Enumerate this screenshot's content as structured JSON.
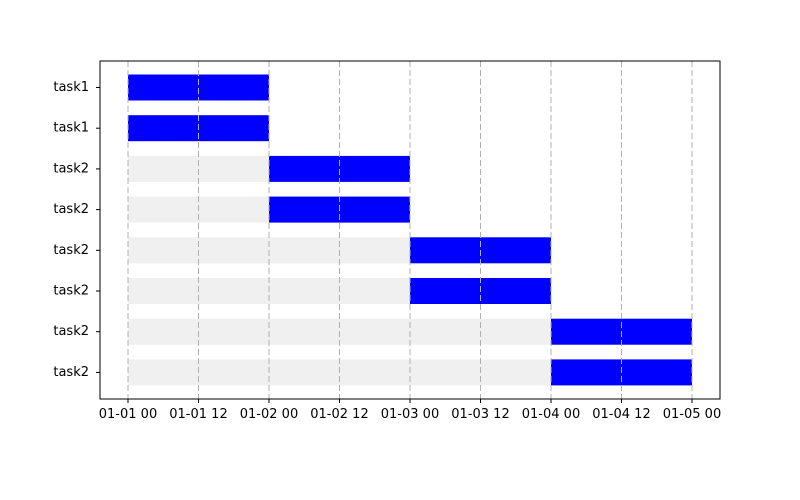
{
  "chart_data": {
    "type": "gantt",
    "title": "",
    "xlabel": "",
    "ylabel": "",
    "x_ticks": [
      "01-01 00",
      "01-01 12",
      "01-02 00",
      "01-02 12",
      "01-03 00",
      "01-03 12",
      "01-04 00",
      "01-04 12",
      "01-05 00"
    ],
    "x_tick_values": [
      "2000-01-01 00:00",
      "2000-01-01 12:00",
      "2000-01-02 00:00",
      "2000-01-02 12:00",
      "2000-01-03 00:00",
      "2000-01-03 12:00",
      "2000-01-04 00:00",
      "2000-01-04 12:00",
      "2000-01-05 00:00"
    ],
    "xlim": [
      "2000-01-01 00:00",
      "2000-01-05 00:00"
    ],
    "grid": "x-dashed",
    "tasks": [
      {
        "label": "task1",
        "start": "2000-01-01 00:00",
        "end": "2000-01-02 00:00"
      },
      {
        "label": "task1",
        "start": "2000-01-01 00:00",
        "end": "2000-01-02 00:00"
      },
      {
        "label": "task2",
        "start": "2000-01-02 00:00",
        "end": "2000-01-03 00:00"
      },
      {
        "label": "task2",
        "start": "2000-01-02 00:00",
        "end": "2000-01-03 00:00"
      },
      {
        "label": "task2",
        "start": "2000-01-03 00:00",
        "end": "2000-01-04 00:00"
      },
      {
        "label": "task2",
        "start": "2000-01-03 00:00",
        "end": "2000-01-04 00:00"
      },
      {
        "label": "task2",
        "start": "2000-01-04 00:00",
        "end": "2000-01-05 00:00"
      },
      {
        "label": "task2",
        "start": "2000-01-04 00:00",
        "end": "2000-01-05 00:00"
      }
    ],
    "colors": {
      "bar": "#0000ff",
      "background_bar": "#f0f0f0",
      "grid": "#b0b0b0",
      "axis": "#000000"
    }
  }
}
